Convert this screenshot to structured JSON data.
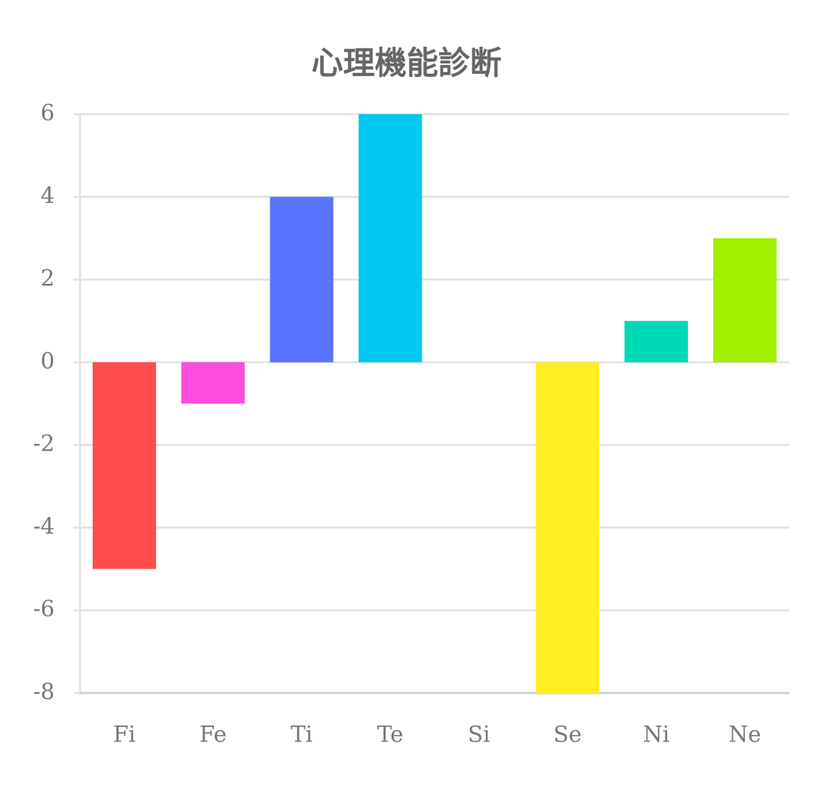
{
  "chart_data": {
    "type": "bar",
    "title": "心理機能診断",
    "categories": [
      "Fi",
      "Fe",
      "Ti",
      "Te",
      "Si",
      "Se",
      "Ni",
      "Ne"
    ],
    "values": [
      -5,
      -1,
      4,
      6,
      0,
      -8,
      1,
      3
    ],
    "colors": [
      "#ff4d4d",
      "#ff4ddf",
      "#5a73ff",
      "#00c8f0",
      "#9e9e9e",
      "#ffee22",
      "#00d9b5",
      "#a0f000"
    ],
    "ylim": [
      -8,
      6
    ],
    "yticks": [
      -8,
      -6,
      -4,
      -2,
      0,
      2,
      4,
      6
    ],
    "grid": true
  }
}
